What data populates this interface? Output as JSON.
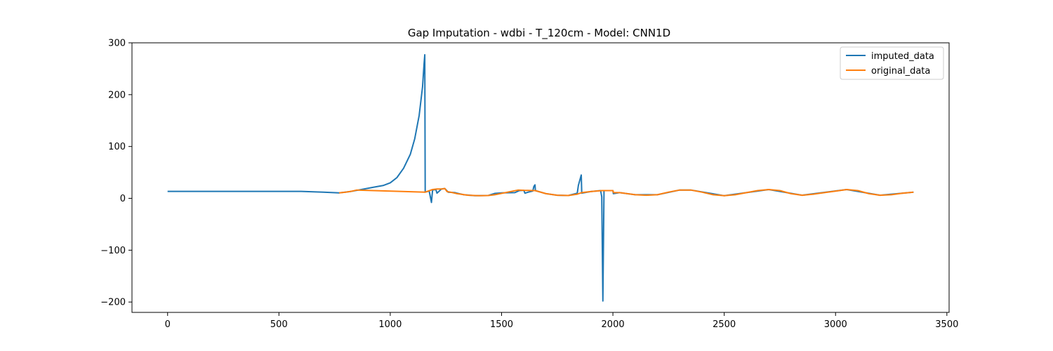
{
  "chart_data": {
    "type": "line",
    "title": "Gap Imputation - wdbi - T_120cm - Model: CNN1D",
    "xlabel": "",
    "ylabel": "",
    "xlim": [
      -160,
      3510
    ],
    "ylim": [
      -220,
      300
    ],
    "xticks": [
      0,
      500,
      1000,
      1500,
      2000,
      2500,
      3000,
      3500
    ],
    "yticks": [
      -200,
      -100,
      0,
      100,
      200,
      300
    ],
    "legend": {
      "position": "top-right"
    },
    "series": [
      {
        "name": "imputed_data",
        "color": "#1f77b4",
        "points": [
          [
            0,
            13.5
          ],
          [
            200,
            13.5
          ],
          [
            400,
            13.5
          ],
          [
            600,
            13.5
          ],
          [
            700,
            12
          ],
          [
            770,
            10.5
          ],
          [
            820,
            13
          ],
          [
            870,
            17
          ],
          [
            920,
            21
          ],
          [
            970,
            25
          ],
          [
            1000,
            30
          ],
          [
            1030,
            40
          ],
          [
            1060,
            58
          ],
          [
            1090,
            85
          ],
          [
            1110,
            115
          ],
          [
            1130,
            160
          ],
          [
            1145,
            215
          ],
          [
            1152,
            260
          ],
          [
            1155,
            277
          ],
          [
            1157,
            12
          ],
          [
            1175,
            14
          ],
          [
            1185,
            -8
          ],
          [
            1190,
            16
          ],
          [
            1205,
            17
          ],
          [
            1210,
            10
          ],
          [
            1230,
            18
          ],
          [
            1245,
            19
          ],
          [
            1260,
            12
          ],
          [
            1290,
            11
          ],
          [
            1300,
            10
          ],
          [
            1330,
            7
          ],
          [
            1380,
            5
          ],
          [
            1440,
            5.5
          ],
          [
            1470,
            9.5
          ],
          [
            1500,
            10.5
          ],
          [
            1560,
            11
          ],
          [
            1580,
            15
          ],
          [
            1600,
            15.5
          ],
          [
            1605,
            10
          ],
          [
            1620,
            12
          ],
          [
            1640,
            14
          ],
          [
            1645,
            23
          ],
          [
            1650,
            26
          ],
          [
            1652,
            15
          ],
          [
            1700,
            9
          ],
          [
            1750,
            6
          ],
          [
            1800,
            5.5
          ],
          [
            1840,
            10
          ],
          [
            1845,
            25
          ],
          [
            1858,
            45
          ],
          [
            1860,
            10
          ],
          [
            1900,
            13
          ],
          [
            1945,
            15
          ],
          [
            1950,
            3
          ],
          [
            1955,
            -198
          ],
          [
            1960,
            15
          ],
          [
            2000,
            15
          ],
          [
            2002,
            9
          ],
          [
            2030,
            11
          ],
          [
            2100,
            7
          ],
          [
            2200,
            7
          ],
          [
            2300,
            16
          ],
          [
            2350,
            16
          ],
          [
            2500,
            5
          ],
          [
            2700,
            17
          ],
          [
            2850,
            6
          ],
          [
            3050,
            17
          ],
          [
            3200,
            6
          ],
          [
            3350,
            12
          ]
        ]
      },
      {
        "name": "original_data",
        "color": "#ff7f0e",
        "points": [
          [
            770,
            10.5
          ],
          [
            800,
            12
          ],
          [
            830,
            14
          ],
          [
            850,
            16
          ],
          [
            1157,
            12
          ],
          [
            1190,
            17
          ],
          [
            1210,
            18
          ],
          [
            1235,
            18
          ],
          [
            1245,
            19
          ],
          [
            1255,
            13
          ],
          [
            1270,
            12
          ],
          [
            1300,
            9
          ],
          [
            1350,
            6
          ],
          [
            1400,
            5
          ],
          [
            1440,
            5.5
          ],
          [
            1470,
            7
          ],
          [
            1575,
            16
          ],
          [
            1600,
            15.5
          ],
          [
            1650,
            15
          ],
          [
            1700,
            9
          ],
          [
            1750,
            6
          ],
          [
            1800,
            5.5
          ],
          [
            1840,
            8
          ],
          [
            1860,
            11
          ],
          [
            1900,
            13
          ],
          [
            1950,
            15
          ],
          [
            2000,
            15
          ],
          [
            2003,
            11
          ],
          [
            2030,
            11
          ],
          [
            2100,
            7
          ],
          [
            2150,
            6
          ],
          [
            2200,
            7
          ],
          [
            2250,
            12
          ],
          [
            2300,
            16
          ],
          [
            2350,
            16
          ],
          [
            2400,
            12
          ],
          [
            2450,
            7
          ],
          [
            2500,
            5
          ],
          [
            2550,
            7
          ],
          [
            2600,
            11
          ],
          [
            2650,
            15
          ],
          [
            2700,
            17
          ],
          [
            2750,
            15
          ],
          [
            2800,
            9
          ],
          [
            2850,
            6
          ],
          [
            2900,
            8
          ],
          [
            2950,
            11
          ],
          [
            3000,
            14
          ],
          [
            3050,
            17
          ],
          [
            3100,
            15
          ],
          [
            3150,
            9
          ],
          [
            3200,
            6
          ],
          [
            3250,
            7
          ],
          [
            3300,
            10
          ],
          [
            3350,
            12
          ]
        ]
      }
    ]
  }
}
